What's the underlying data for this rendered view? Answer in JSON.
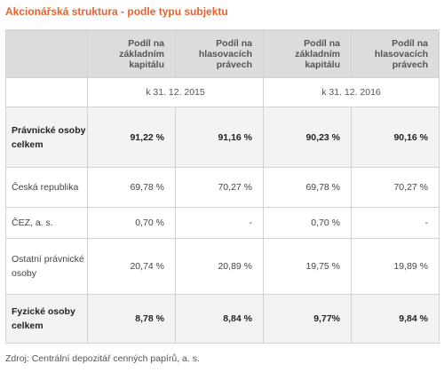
{
  "title": "Akcionářská struktura - podle typu subjektu",
  "header": {
    "columns": [
      "Podíl na základním kapitálu",
      "Podíl na hlasovacích právech",
      "Podíl na základním kapitálu",
      "Podíl na hlasovacích právech"
    ],
    "dates": [
      "k 31. 12. 2015",
      "k 31. 12. 2016"
    ]
  },
  "rows": [
    {
      "label": "Právnické osoby celkem",
      "values": [
        "91,22 %",
        "91,16 %",
        "90,23 %",
        "90,16 %"
      ],
      "bold": true
    },
    {
      "label": "Česká republika",
      "values": [
        "69,78 %",
        "70,27 %",
        "69,78 %",
        "70,27 %"
      ],
      "bold": false
    },
    {
      "label": "ČEZ, a. s.",
      "values": [
        "0,70 %",
        "-",
        "0,70 %",
        "-"
      ],
      "bold": false
    },
    {
      "label": "Ostatní právnické osoby",
      "values": [
        "20,74 %",
        "20,89 %",
        "19,75 %",
        "19,89 %"
      ],
      "bold": false
    },
    {
      "label": "Fyzické osoby celkem",
      "values": [
        "8,78 %",
        "8,84 %",
        "9,77%",
        "9,84 %"
      ],
      "bold": true
    }
  ],
  "source": "Zdroj: Centrální depozitář cenných papírů, a. s.",
  "colors": {
    "title": "#e8612c",
    "header_bg": "#dcdcdc",
    "shaded_row_bg": "#f3f3f3",
    "border": "#d2d2d2"
  }
}
